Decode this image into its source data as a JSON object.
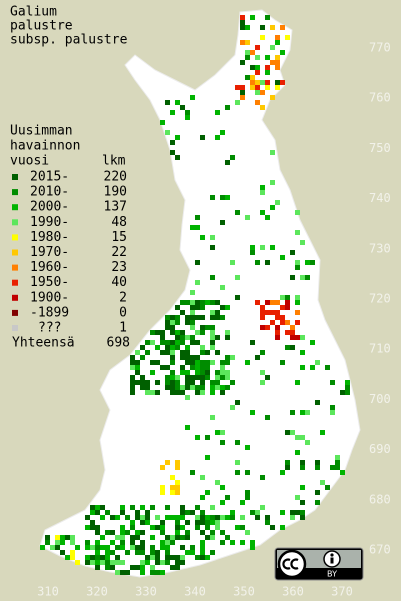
{
  "title": [
    "Galium",
    "palustre",
    "subsp. palustre"
  ],
  "legend": {
    "heading": [
      "Uusimman",
      "havainnon",
      "vuosi"
    ],
    "count_heading": "lkm",
    "rows": [
      {
        "label": "2015-",
        "count": 220,
        "color": "#006000"
      },
      {
        "label": "2010-",
        "count": 190,
        "color": "#008c00"
      },
      {
        "label": "2000-",
        "count": 137,
        "color": "#00b400"
      },
      {
        "label": "1990-",
        "count": 48,
        "color": "#5ce65c"
      },
      {
        "label": "1980-",
        "count": 15,
        "color": "#ffff00"
      },
      {
        "label": "1970-",
        "count": 22,
        "color": "#ffc800"
      },
      {
        "label": "1960-",
        "count": 23,
        "color": "#ff8000"
      },
      {
        "label": "1950-",
        "count": 40,
        "color": "#e82000"
      },
      {
        "label": "1900-",
        "count": 2,
        "color": "#c00000"
      },
      {
        "label": "-1899",
        "count": 0,
        "color": "#800000"
      },
      {
        "label": "???",
        "count": 1,
        "color": "#c8c8c8"
      }
    ],
    "total_label": "Yhteensä",
    "total": 698
  },
  "axes": {
    "x_labels": [
      310,
      320,
      330,
      340,
      350,
      360,
      370
    ],
    "y_labels": [
      770,
      760,
      750,
      740,
      730,
      720,
      710,
      700,
      690,
      680,
      670
    ]
  },
  "license": "BY"
}
